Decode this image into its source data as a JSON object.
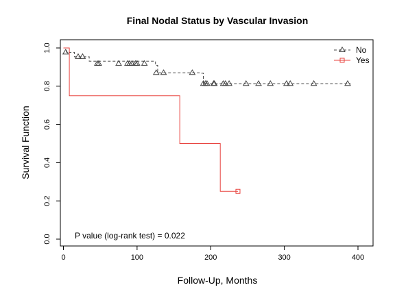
{
  "chart_data": {
    "type": "line",
    "title": "Final Nodal Status by Vascular Invasion",
    "xlabel": "Follow-Up, Months",
    "ylabel": "Survival Function",
    "xlim": [
      0,
      400
    ],
    "ylim": [
      0,
      1
    ],
    "x_ticks": [
      "0",
      "100",
      "200",
      "300",
      "400"
    ],
    "y_ticks": [
      "0.0",
      "0.2",
      "0.4",
      "0.6",
      "0.8",
      "1.0"
    ],
    "grid": false,
    "legend_position": "top-right",
    "annotation": "P value (log-rank test) =  0.022",
    "series": [
      {
        "name": "No",
        "color": "#444444",
        "line_style": "dashed",
        "marker": "triangle",
        "steps": [
          [
            0,
            1.0
          ],
          [
            4,
            0.977
          ],
          [
            15,
            0.954
          ],
          [
            35,
            0.931
          ],
          [
            125,
            0.909
          ],
          [
            128,
            0.87
          ],
          [
            187,
            0.868
          ],
          [
            190,
            0.813
          ],
          [
            390,
            0.813
          ]
        ],
        "censored": [
          [
            3,
            0.977
          ],
          [
            20,
            0.954
          ],
          [
            26,
            0.954
          ],
          [
            46,
            0.918
          ],
          [
            48,
            0.918
          ],
          [
            75,
            0.918
          ],
          [
            87,
            0.918
          ],
          [
            90,
            0.918
          ],
          [
            93,
            0.918
          ],
          [
            98,
            0.918
          ],
          [
            100,
            0.918
          ],
          [
            110,
            0.918
          ],
          [
            126,
            0.87
          ],
          [
            136,
            0.87
          ],
          [
            175,
            0.87
          ],
          [
            190,
            0.813
          ],
          [
            193,
            0.813
          ],
          [
            195,
            0.813
          ],
          [
            204,
            0.813
          ],
          [
            205,
            0.813
          ],
          [
            217,
            0.813
          ],
          [
            220,
            0.813
          ],
          [
            225,
            0.813
          ],
          [
            248,
            0.813
          ],
          [
            265,
            0.813
          ],
          [
            281,
            0.813
          ],
          [
            303,
            0.813
          ],
          [
            308,
            0.813
          ],
          [
            340,
            0.813
          ],
          [
            386,
            0.813
          ]
        ]
      },
      {
        "name": "Yes",
        "color": "#e8433f",
        "line_style": "solid",
        "marker": "square",
        "steps": [
          [
            0,
            1.0
          ],
          [
            8,
            0.75
          ],
          [
            158,
            0.5
          ],
          [
            213,
            0.25
          ],
          [
            237,
            0.25
          ]
        ],
        "censored": [
          [
            237,
            0.25
          ]
        ]
      }
    ]
  }
}
